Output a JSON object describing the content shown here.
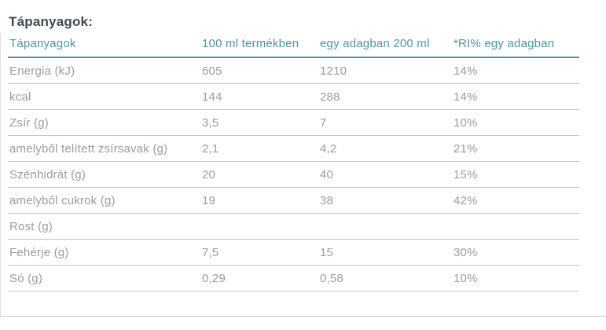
{
  "page_title": "Tápanyagok:",
  "colors": {
    "accent_teal": "#4c97a4",
    "title_text": "#3d4a53",
    "row_text": "#9d9d9d",
    "row_separator": "#c6c6c6",
    "bottom_rule": "#cccccc"
  },
  "table": {
    "headers": {
      "nutrient": "Tápanyagok",
      "per_100ml": "100 ml termékben",
      "per_serving": "egy adagban 200 ml",
      "ri_per_serving": "*RI% egy adagban"
    },
    "rows": [
      {
        "label": "Energia (kJ)",
        "per_100ml": "605",
        "per_serving": "1210",
        "ri": "14%"
      },
      {
        "label": "kcal",
        "per_100ml": "144",
        "per_serving": "288",
        "ri": "14%"
      },
      {
        "label": "Zsír (g)",
        "per_100ml": "3,5",
        "per_serving": "7",
        "ri": "10%"
      },
      {
        "label": "amelyből telített zsírsavak (g)",
        "per_100ml": "2,1",
        "per_serving": "4,2",
        "ri": "21%"
      },
      {
        "label": "Szénhidrát (g)",
        "per_100ml": "20",
        "per_serving": "40",
        "ri": "15%"
      },
      {
        "label": "amelyből cukrok (g)",
        "per_100ml": "19",
        "per_serving": "38",
        "ri": "42%"
      },
      {
        "label": "Rost (g)",
        "per_100ml": "",
        "per_serving": "",
        "ri": ""
      },
      {
        "label": "Fehérje (g)",
        "per_100ml": "7,5",
        "per_serving": "15",
        "ri": "30%"
      },
      {
        "label": "Só (g)",
        "per_100ml": "0,29",
        "per_serving": "0,58",
        "ri": "10%"
      }
    ]
  }
}
